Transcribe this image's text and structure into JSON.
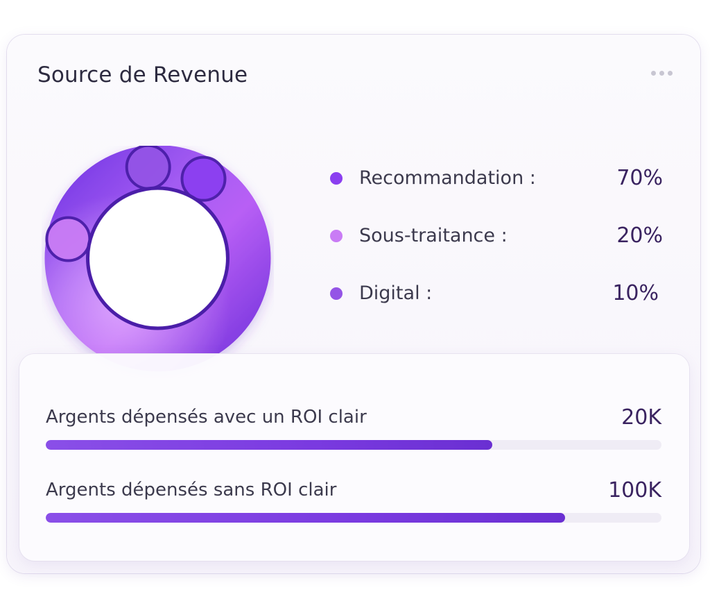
{
  "card": {
    "title": "Source de Revenue"
  },
  "donut": {
    "segments": [
      {
        "label": "Recommandation :",
        "value": "70%",
        "percent": 70,
        "color": "#8b3ff0"
      },
      {
        "label": "Sous-traitance :",
        "value": "20%",
        "percent": 20,
        "color": "#c97cf5"
      },
      {
        "label": "Digital :",
        "value": "10%",
        "percent": 10,
        "color": "#9454e6"
      }
    ]
  },
  "spending": {
    "items": [
      {
        "label": "Argents dépensés avec un ROI clair",
        "value": "20K",
        "fill_fraction": 0.725
      },
      {
        "label": "Argents dépensés sans ROI clair",
        "value": "100K",
        "fill_fraction": 0.843
      }
    ]
  },
  "colors": {
    "accent": "#7a3ae0",
    "title": "#2d2b40",
    "value": "#3a2360"
  }
}
